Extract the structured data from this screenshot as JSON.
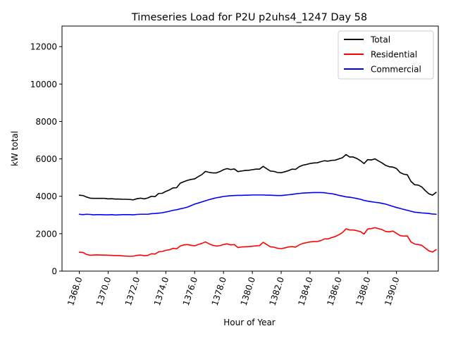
{
  "chart_data": {
    "type": "line",
    "title": "Timeseries Load for P2U p2uhs4_1247  Day 58",
    "xlabel": "Hour of Year",
    "ylabel": "kW total",
    "xlim": [
      1366.8,
      1392.9
    ],
    "ylim": [
      0,
      13100
    ],
    "x_ticks": [
      1368,
      1370,
      1372,
      1374,
      1376,
      1378,
      1380,
      1382,
      1384,
      1386,
      1388,
      1390
    ],
    "x_tick_labels": [
      "1368.0",
      "1370.0",
      "1372.0",
      "1374.0",
      "1376.0",
      "1378.0",
      "1380.0",
      "1382.0",
      "1384.0",
      "1386.0",
      "1388.0",
      "1390.0"
    ],
    "y_ticks": [
      0,
      2000,
      4000,
      6000,
      8000,
      10000,
      12000
    ],
    "y_tick_labels": [
      "0",
      "2000",
      "4000",
      "6000",
      "8000",
      "10000",
      "12000"
    ],
    "legend_position": "top-right",
    "x_start": 1368.0,
    "x_step": 0.25,
    "series": [
      {
        "name": "Total",
        "color": "#000000",
        "values": [
          4060,
          4040,
          3960,
          3900,
          3890,
          3890,
          3890,
          3890,
          3860,
          3870,
          3850,
          3850,
          3840,
          3840,
          3830,
          3810,
          3870,
          3900,
          3860,
          3910,
          4000,
          3980,
          4150,
          4160,
          4260,
          4340,
          4450,
          4460,
          4700,
          4780,
          4850,
          4900,
          4930,
          5050,
          5160,
          5330,
          5280,
          5250,
          5250,
          5320,
          5420,
          5480,
          5430,
          5460,
          5320,
          5350,
          5380,
          5390,
          5420,
          5450,
          5450,
          5600,
          5470,
          5350,
          5330,
          5270,
          5260,
          5310,
          5370,
          5450,
          5440,
          5580,
          5660,
          5700,
          5750,
          5780,
          5790,
          5850,
          5900,
          5880,
          5920,
          5930,
          6000,
          6060,
          6230,
          6100,
          6100,
          6020,
          5900,
          5750,
          5960,
          5940,
          6000,
          5890,
          5780,
          5650,
          5580,
          5560,
          5480,
          5270,
          5180,
          5150,
          4800,
          4620,
          4600,
          4500,
          4300,
          4130,
          4060,
          4210
        ]
      },
      {
        "name": "Residential",
        "color": "#ff0000",
        "values": [
          1010,
          1000,
          890,
          850,
          860,
          870,
          860,
          860,
          850,
          840,
          830,
          830,
          810,
          800,
          790,
          800,
          840,
          860,
          820,
          840,
          930,
          910,
          1030,
          1050,
          1110,
          1140,
          1220,
          1190,
          1340,
          1400,
          1420,
          1380,
          1350,
          1420,
          1480,
          1560,
          1460,
          1380,
          1340,
          1360,
          1420,
          1460,
          1400,
          1420,
          1260,
          1290,
          1300,
          1310,
          1330,
          1350,
          1360,
          1540,
          1420,
          1300,
          1280,
          1220,
          1200,
          1240,
          1290,
          1310,
          1280,
          1400,
          1480,
          1520,
          1560,
          1580,
          1580,
          1630,
          1720,
          1720,
          1790,
          1850,
          1940,
          2060,
          2260,
          2200,
          2200,
          2160,
          2110,
          1980,
          2250,
          2270,
          2320,
          2270,
          2220,
          2120,
          2100,
          2140,
          2020,
          1900,
          1870,
          1880,
          1560,
          1450,
          1420,
          1380,
          1230,
          1080,
          1020,
          1150
        ]
      },
      {
        "name": "Commercial",
        "color": "#0000ff",
        "values": [
          3040,
          3020,
          3040,
          3030,
          3010,
          3020,
          3020,
          3010,
          3010,
          3020,
          3000,
          3010,
          3020,
          3020,
          3020,
          3010,
          3030,
          3040,
          3040,
          3040,
          3070,
          3080,
          3100,
          3120,
          3160,
          3200,
          3250,
          3280,
          3330,
          3370,
          3420,
          3500,
          3580,
          3640,
          3700,
          3760,
          3820,
          3870,
          3920,
          3950,
          3990,
          4010,
          4030,
          4040,
          4050,
          4050,
          4060,
          4060,
          4070,
          4070,
          4070,
          4070,
          4060,
          4060,
          4050,
          4040,
          4040,
          4060,
          4080,
          4100,
          4130,
          4150,
          4170,
          4180,
          4190,
          4200,
          4200,
          4200,
          4190,
          4160,
          4140,
          4100,
          4050,
          4010,
          3970,
          3950,
          3920,
          3880,
          3840,
          3780,
          3740,
          3710,
          3680,
          3660,
          3620,
          3580,
          3520,
          3460,
          3400,
          3350,
          3300,
          3250,
          3200,
          3150,
          3130,
          3110,
          3100,
          3080,
          3050,
          3040
        ]
      }
    ]
  }
}
